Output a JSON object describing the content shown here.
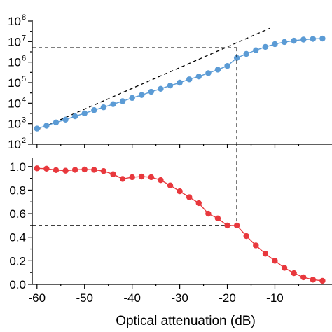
{
  "chart_data": {
    "xlabel": "Optical attenuation (dB)",
    "xlim": [
      -61,
      2
    ],
    "xticks": [
      -60,
      -50,
      -40,
      -30,
      -20,
      -10
    ],
    "colors": {
      "top_series": "#5b9bd5",
      "bottom_series": "#e8383d",
      "axes": "#000000"
    },
    "panels": [
      {
        "type": "line",
        "yscale": "log",
        "ylim": [
          100,
          100000000
        ],
        "yticks": [
          {
            "base": "10",
            "exp": "2",
            "value": 100
          },
          {
            "base": "10",
            "exp": "3",
            "value": 1000
          },
          {
            "base": "10",
            "exp": "4",
            "value": 10000
          },
          {
            "base": "10",
            "exp": "5",
            "value": 100000
          },
          {
            "base": "10",
            "exp": "6",
            "value": 1000000
          },
          {
            "base": "10",
            "exp": "7",
            "value": 10000000
          },
          {
            "base": "10",
            "exp": "8",
            "value": 100000000
          }
        ],
        "series": [
          {
            "x": [
              -60,
              -58,
              -56,
              -54,
              -52,
              -50,
              -48,
              -46,
              -44,
              -42,
              -40,
              -38,
              -36,
              -34,
              -32,
              -30,
              -28,
              -26,
              -24,
              -22,
              -20,
              -18,
              -16,
              -14,
              -12,
              -10,
              -8,
              -6,
              -4,
              -2,
              0
            ],
            "y": [
              580,
              800,
              1150,
              1580,
              2300,
              3200,
              4600,
              6300,
              9000,
              12500,
              18000,
              25000,
              36000,
              50000,
              72000,
              100000,
              145000,
              200000,
              290000,
              430000,
              650000,
              1600000,
              2500000,
              3800000,
              5500000,
              7500000,
              9500000,
              11000000,
              12500000,
              13500000,
              14000000
            ]
          }
        ],
        "fit_line": {
          "x": [
            -60,
            -11
          ],
          "y": [
            500,
            45000000
          ]
        },
        "reference": {
          "x": -18,
          "y": 5000000
        }
      },
      {
        "type": "line",
        "ylim": [
          0,
          1.07
        ],
        "yticks": [
          "0.0",
          "0.2",
          "0.4",
          "0.6",
          "0.8",
          "1.0"
        ],
        "series": [
          {
            "x": [
              -60,
              -58,
              -56,
              -54,
              -52,
              -50,
              -48,
              -46,
              -44,
              -42,
              -40,
              -38,
              -36,
              -34,
              -32,
              -30,
              -28,
              -26,
              -24,
              -22,
              -20,
              -18,
              -16,
              -14,
              -12,
              -10,
              -8,
              -6,
              -4,
              -2,
              0
            ],
            "y": [
              0.985,
              0.982,
              0.97,
              0.965,
              0.972,
              0.975,
              0.972,
              0.962,
              0.935,
              0.895,
              0.91,
              0.915,
              0.91,
              0.885,
              0.84,
              0.79,
              0.74,
              0.69,
              0.6,
              0.56,
              0.5,
              0.5,
              0.41,
              0.33,
              0.26,
              0.2,
              0.14,
              0.095,
              0.06,
              0.04,
              0.03
            ]
          }
        ],
        "reference": {
          "x": -18,
          "y": 0.5
        }
      }
    ]
  }
}
